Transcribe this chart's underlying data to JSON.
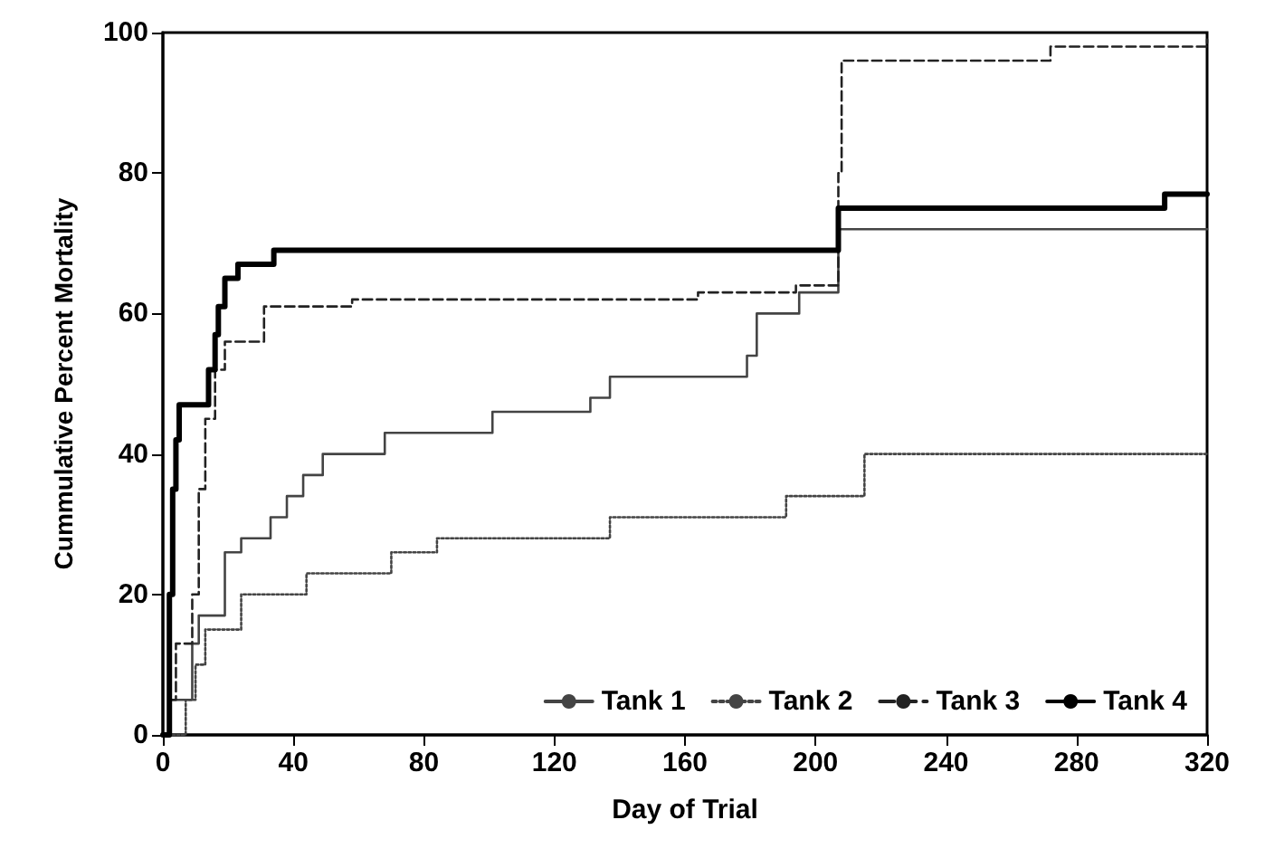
{
  "chart_data": {
    "type": "step",
    "xlabel": "Day of Trial",
    "ylabel": "Cummulative Percent Mortality",
    "xlim": [
      0,
      320
    ],
    "ylim": [
      0,
      100
    ],
    "xticks": [
      0,
      40,
      80,
      120,
      160,
      200,
      240,
      280,
      320
    ],
    "yticks": [
      0,
      20,
      40,
      60,
      80,
      100
    ],
    "grid": false,
    "legend": "bottom right",
    "marker": "none",
    "series": [
      {
        "name": "Tank 1",
        "color": "#444444",
        "line_style": "solid",
        "x": [
          0,
          2,
          9,
          11,
          19,
          24,
          33,
          38,
          43,
          49,
          68,
          101,
          131,
          137,
          179,
          182,
          195,
          207,
          320
        ],
        "values": [
          0,
          5,
          13,
          17,
          26,
          28,
          31,
          34,
          37,
          40,
          43,
          46,
          48,
          51,
          54,
          60,
          63,
          72,
          72
        ]
      },
      {
        "name": "Tank 2",
        "color": "#444444",
        "line_style": "dotted",
        "x": [
          0,
          7,
          10,
          13,
          24,
          44,
          70,
          84,
          137,
          191,
          215,
          320
        ],
        "values": [
          0,
          5,
          10,
          15,
          20,
          23,
          26,
          28,
          31,
          34,
          40,
          40
        ]
      },
      {
        "name": "Tank 3",
        "color": "#222222",
        "line_style": "dashed",
        "x": [
          0,
          2,
          4,
          9,
          11,
          13,
          16,
          19,
          31,
          58,
          164,
          194,
          207,
          208,
          272,
          320
        ],
        "values": [
          0,
          5,
          13,
          20,
          35,
          45,
          52,
          56,
          61,
          62,
          63,
          64,
          80,
          96,
          98,
          99
        ]
      },
      {
        "name": "Tank 4",
        "color": "#000000",
        "line_style": "solid",
        "x": [
          0,
          2,
          3,
          4,
          5,
          14,
          16,
          17,
          19,
          23,
          34,
          207,
          307,
          320
        ],
        "values": [
          0,
          20,
          35,
          42,
          47,
          52,
          57,
          61,
          65,
          67,
          69,
          75,
          77,
          77
        ]
      }
    ]
  }
}
